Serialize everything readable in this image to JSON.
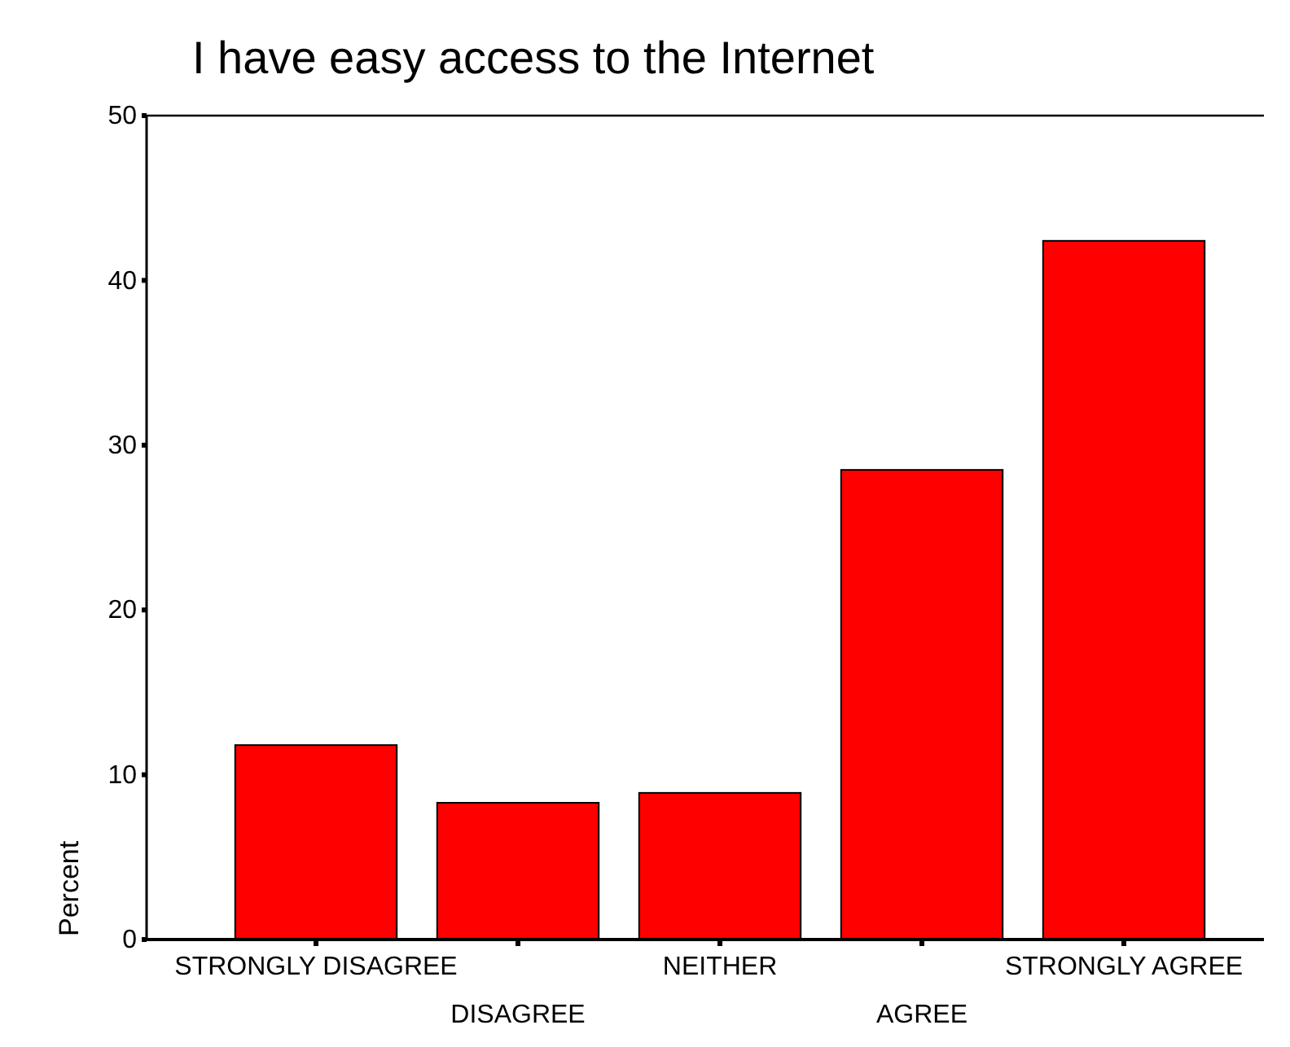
{
  "chart_data": {
    "type": "bar",
    "title": "I have easy access to the Internet",
    "ylabel": "Percent",
    "categories": [
      "STRONGLY DISAGREE",
      "DISAGREE",
      "NEITHER",
      "AGREE",
      "STRONGLY AGREE"
    ],
    "values": [
      11.8,
      8.3,
      8.9,
      28.5,
      42.4
    ],
    "color": "#ff0000",
    "ylim": [
      0,
      50
    ],
    "yticks": [
      0,
      10,
      20,
      30,
      40,
      50
    ],
    "grid": false
  }
}
